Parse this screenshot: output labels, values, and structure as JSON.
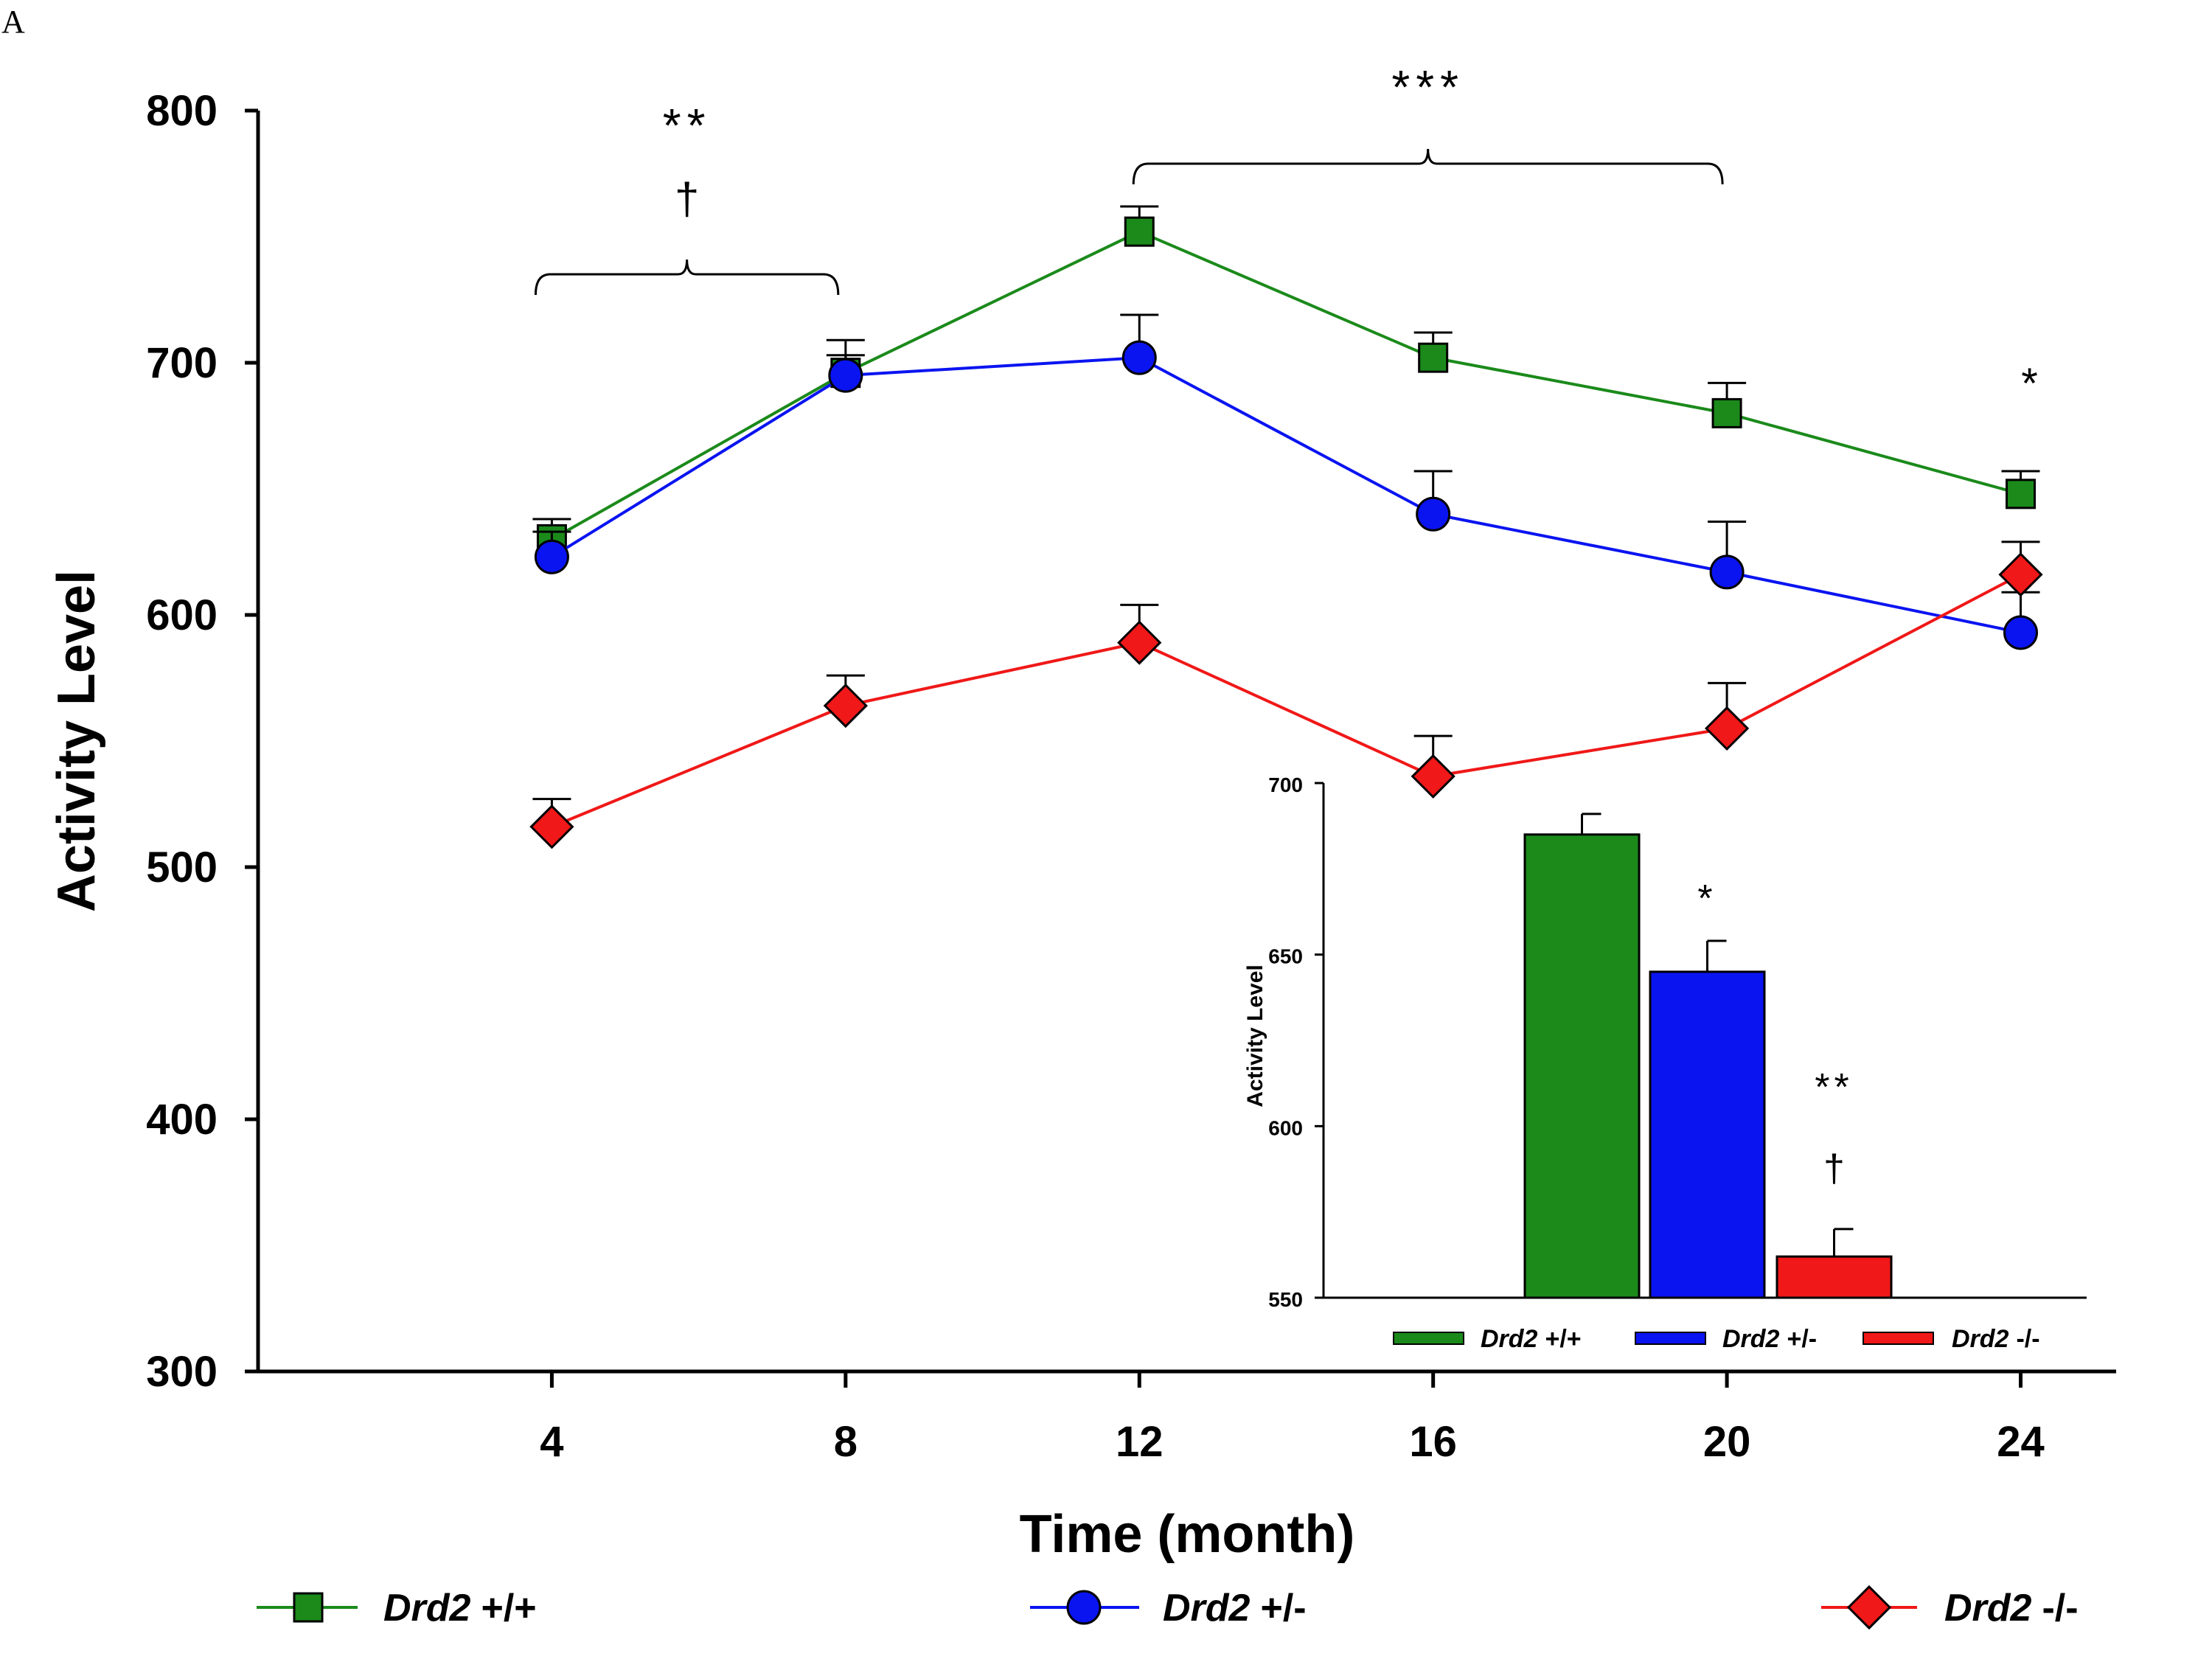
{
  "panel_label": "A",
  "colors": {
    "wt": "#1b8a1b",
    "het": "#0a14f0",
    "ko": "#f01818",
    "axis": "#000000"
  },
  "chart_data": [
    {
      "type": "line",
      "title": "",
      "xlabel": "Time (month)",
      "ylabel": "Activity Level",
      "x": [
        4,
        8,
        12,
        16,
        20,
        24
      ],
      "xlim": [
        0,
        25.3
      ],
      "ylim": [
        300,
        800
      ],
      "yticks": [
        300,
        400,
        500,
        600,
        700,
        800
      ],
      "xticks": [
        4,
        8,
        12,
        16,
        20,
        24
      ],
      "grid": false,
      "legend_position": "bottom",
      "series": [
        {
          "gene": "Drd2",
          "genotype": "+/+",
          "marker": "square",
          "color": "#1b8a1b",
          "values": [
            630,
            696,
            752,
            702,
            680,
            648
          ],
          "errors": [
            8,
            13,
            10,
            10,
            12,
            9
          ]
        },
        {
          "gene": "Drd2",
          "genotype": "+/-",
          "marker": "circle",
          "color": "#0a14f0",
          "values": [
            623,
            695,
            702,
            640,
            617,
            593
          ],
          "errors": [
            10,
            8,
            17,
            17,
            20,
            16
          ]
        },
        {
          "gene": "Drd2",
          "genotype": "-/-",
          "marker": "diamond",
          "color": "#f01818",
          "values": [
            516,
            564,
            589,
            536,
            555,
            616
          ],
          "errors": [
            11,
            12,
            15,
            16,
            18,
            13
          ]
        }
      ],
      "annotations": {
        "bracket1_stars": "**",
        "bracket1_dagger": "†",
        "bracket1_range": [
          4,
          8
        ],
        "bracket2_stars": "***",
        "bracket2_range": [
          12,
          20
        ],
        "point_24_star": "*"
      }
    },
    {
      "type": "bar",
      "title": "",
      "xlabel": "",
      "ylabel": "Activity Level",
      "ylim": [
        550,
        700
      ],
      "yticks": [
        550,
        600,
        650,
        700
      ],
      "grid": false,
      "legend_position": "bottom",
      "series": [
        {
          "gene": "Drd2",
          "genotype": "+/+",
          "color": "#1b8a1b",
          "value": 685,
          "error": 6,
          "annotation": ""
        },
        {
          "gene": "Drd2",
          "genotype": "+/-",
          "color": "#0a14f0",
          "value": 645,
          "error": 9,
          "annotation": "*"
        },
        {
          "gene": "Drd2",
          "genotype": "-/-",
          "color": "#f01818",
          "value": 562,
          "error": 8,
          "annotation": "**",
          "annotation2": "†"
        }
      ]
    }
  ]
}
